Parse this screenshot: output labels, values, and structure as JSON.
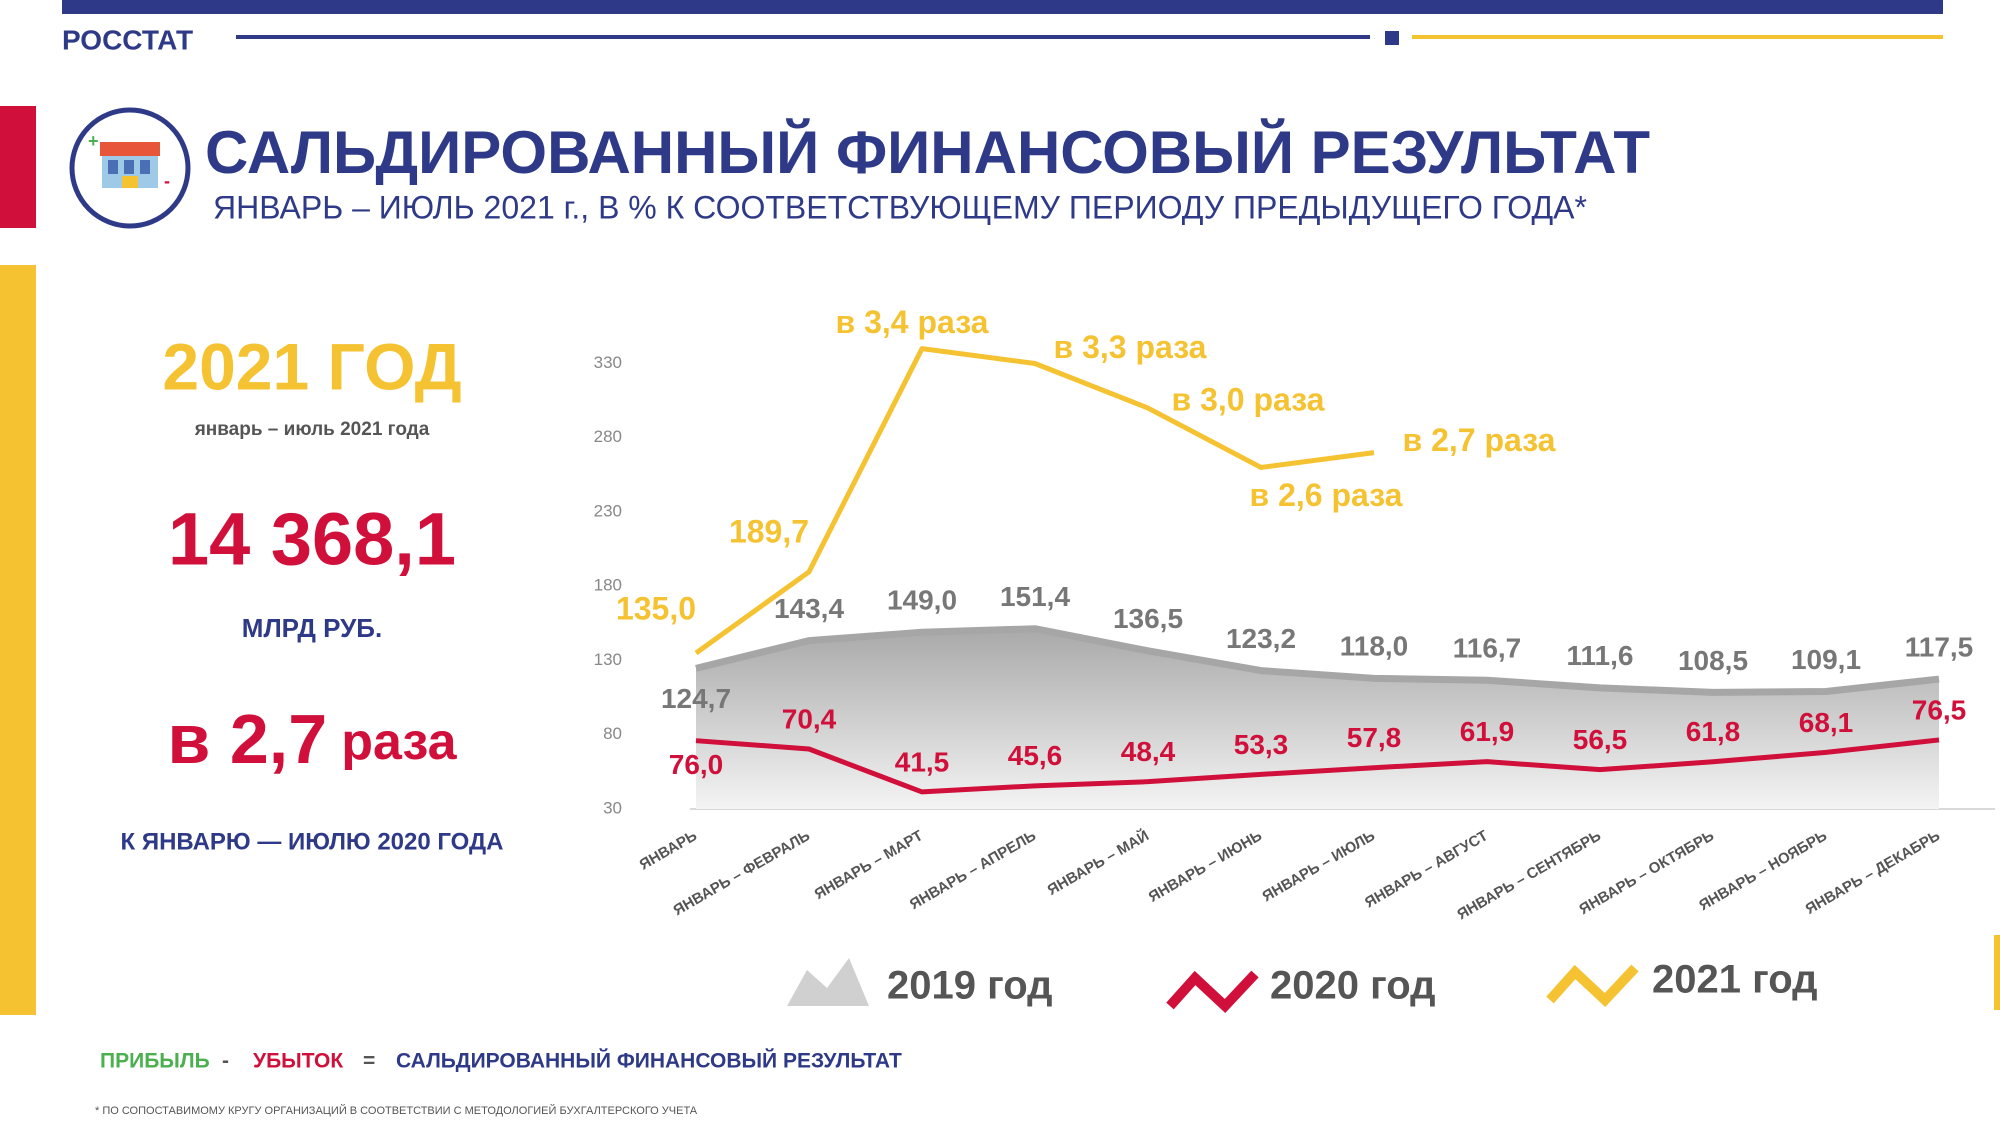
{
  "header": {
    "brand": "РОССТАТ",
    "title": "САЛЬДИРОВАННЫЙ ФИНАНСОВЫЙ РЕЗУЛЬТАТ",
    "subtitle": "ЯНВАРЬ – ИЮЛЬ 2021 г., В % К СООТВЕТСТВУЮЩЕМУ ПЕРИОДУ ПРЕДЫДУЩЕГО ГОДА*"
  },
  "summary": {
    "year": "2021 ГОД",
    "period": "январь – июль 2021 года",
    "amount": "14 368,1",
    "unit": "МЛРД РУБ.",
    "ratio": [
      "в 2,7",
      "раза"
    ],
    "comparison": "К ЯНВАРЮ — ИЮЛЮ 2020 ГОДА"
  },
  "formula": [
    "ПРИБЫЛЬ",
    "-",
    "УБЫТОК",
    "=",
    "САЛЬДИРОВАННЫЙ ФИНАНСОВЫЙ РЕЗУЛЬТАТ"
  ],
  "footnote": "* ПО СОПОСТАВИМОМУ КРУГУ ОРГАНИЗАЦИЙ В СООТВЕТСТВИИ С МЕТОДОЛОГИЕЙ БУХГАЛТЕРСКОГО УЧЕТА",
  "chart_data": {
    "type": "line",
    "categories": [
      "ЯНВАРЬ",
      "ЯНВАРЬ – ФЕВРАЛЬ",
      "ЯНВАРЬ – МАРТ",
      "ЯНВАРЬ – АПРЕЛЬ",
      "ЯНВАРЬ – МАЙ",
      "ЯНВАРЬ – ИЮНЬ",
      "ЯНВАРЬ – ИЮЛЬ",
      "ЯНВАРЬ – АВГУСТ",
      "ЯНВАРЬ – СЕНТЯБРЬ",
      "ЯНВАРЬ – ОКТЯБРЬ",
      "ЯНВАРЬ – НОЯБРЬ",
      "ЯНВАРЬ – ДЕКАБРЬ"
    ],
    "ylim": [
      30,
      350
    ],
    "yticks": [
      30,
      80,
      130,
      180,
      230,
      280,
      330
    ],
    "series": [
      {
        "name": "2019 год",
        "color": "#a6a6a6",
        "fill": "area",
        "values": [
          124.7,
          143.4,
          149.0,
          151.4,
          136.5,
          123.2,
          118.0,
          116.7,
          111.6,
          108.5,
          109.1,
          117.5
        ],
        "value_labels": [
          "124,7",
          "143,4",
          "149,0",
          "151,4",
          "136,5",
          "123,2",
          "118,0",
          "116,7",
          "111,6",
          "108,5",
          "109,1",
          "117,5"
        ]
      },
      {
        "name": "2020 год",
        "color": "#d0103a",
        "values": [
          76.0,
          70.4,
          41.5,
          45.6,
          48.4,
          53.3,
          57.8,
          61.9,
          56.5,
          61.8,
          68.1,
          76.5
        ],
        "value_labels": [
          "76,0",
          "70,4",
          "41,5",
          "45,6",
          "48,4",
          "53,3",
          "57,8",
          "61,9",
          "56,5",
          "61,8",
          "68,1",
          "76,5"
        ]
      },
      {
        "name": "2021 год",
        "color": "#f5c232",
        "values": [
          135.0,
          189.7,
          340,
          330,
          300,
          260,
          270,
          null,
          null,
          null,
          null,
          null
        ],
        "value_labels": [
          "135,0",
          "189,7",
          "в 3,4 раза",
          "в 3,3 раза",
          "в 3,0 раза",
          "в 2,6 раза",
          "в 2,7 раза",
          null,
          null,
          null,
          null,
          null
        ]
      }
    ]
  }
}
